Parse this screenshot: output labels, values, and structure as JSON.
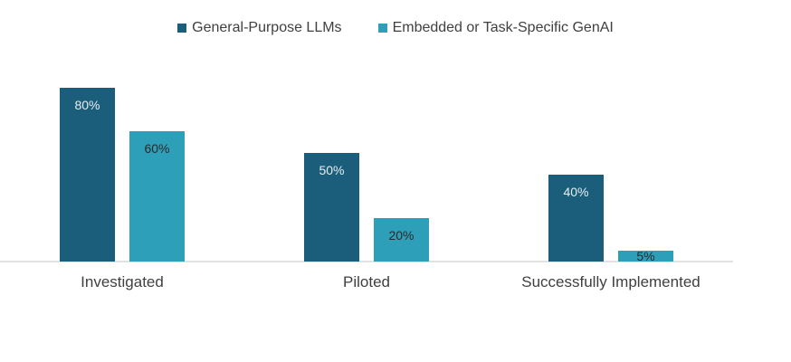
{
  "chart_data": {
    "type": "bar",
    "categories": [
      "Investigated",
      "Piloted",
      "Successfully Implemented"
    ],
    "series": [
      {
        "name": "General-Purpose LLMs",
        "values": [
          80,
          50,
          40
        ],
        "labels": [
          "80%",
          "50%",
          "40%"
        ],
        "color": "#1b5e7c"
      },
      {
        "name": "Embedded or Task-Specific GenAI",
        "values": [
          60,
          20,
          5
        ],
        "labels": [
          "60%",
          "20%",
          "5%"
        ],
        "color": "#2e9fb8"
      }
    ],
    "ylim": [
      0,
      100
    ],
    "legend_position": "top-center",
    "grid": false
  },
  "colors": {
    "axis_line": "#d9d9d9",
    "tick_label": "#404040",
    "label_on_dark": "#e6eef2",
    "label_on_light": "#2a2a2a"
  }
}
